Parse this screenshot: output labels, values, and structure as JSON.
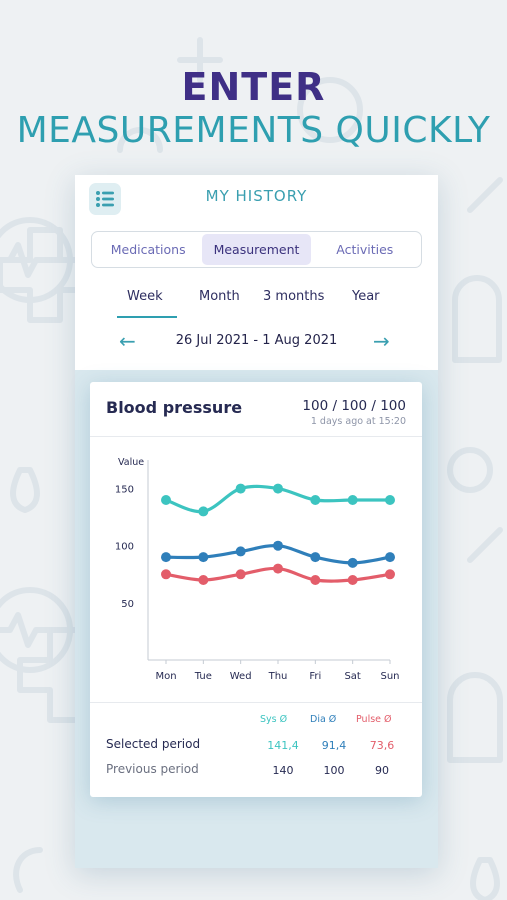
{
  "headline": {
    "line1": "ENTER",
    "line2": "MEASUREMENTS QUICKLY"
  },
  "screen": {
    "title": "MY HISTORY",
    "menu_icon": "list-icon",
    "tabs": [
      {
        "label": "Medications",
        "active": false
      },
      {
        "label": "Measurement",
        "active": true
      },
      {
        "label": "Activities",
        "active": false
      }
    ],
    "periods": [
      {
        "label": "Week",
        "active": true
      },
      {
        "label": "Month",
        "active": false
      },
      {
        "label": "3 months",
        "active": false
      },
      {
        "label": "Year",
        "active": false
      }
    ],
    "date_range": "26 Jul 2021 - 1 Aug 2021",
    "prev_icon": "arrow-left-icon",
    "next_icon": "arrow-right-icon"
  },
  "card": {
    "title": "Blood pressure",
    "latest_value": "100 / 100 / 100",
    "latest_time": "1 days ago at 15:20"
  },
  "chart_data": {
    "type": "line",
    "ylabel": "Value",
    "categories": [
      "Mon",
      "Tue",
      "Wed",
      "Thu",
      "Fri",
      "Sat",
      "Sun"
    ],
    "yticks": [
      50,
      100,
      150
    ],
    "ylim": [
      0,
      175
    ],
    "grid": false,
    "series": [
      {
        "name": "Sys Ø",
        "color": "#3cc4c0",
        "values": [
          140,
          130,
          150,
          150,
          140,
          140,
          140
        ]
      },
      {
        "name": "Dia Ø",
        "color": "#2f7fba",
        "values": [
          90,
          90,
          95,
          100,
          90,
          85,
          90
        ]
      },
      {
        "name": "Pulse Ø",
        "color": "#e35d6a",
        "values": [
          75,
          70,
          75,
          80,
          70,
          70,
          75
        ]
      }
    ]
  },
  "summary": {
    "headers": [
      {
        "label": "Sys Ø",
        "color": "#3cc4c0"
      },
      {
        "label": "Dia Ø",
        "color": "#2f7fba"
      },
      {
        "label": "Pulse Ø",
        "color": "#e35d6a"
      }
    ],
    "rows": [
      {
        "label": "Selected period",
        "values": [
          "141,4",
          "91,4",
          "73,6"
        ],
        "colored": true
      },
      {
        "label": "Previous period",
        "values": [
          "140",
          "100",
          "90"
        ],
        "colored": false
      }
    ]
  }
}
